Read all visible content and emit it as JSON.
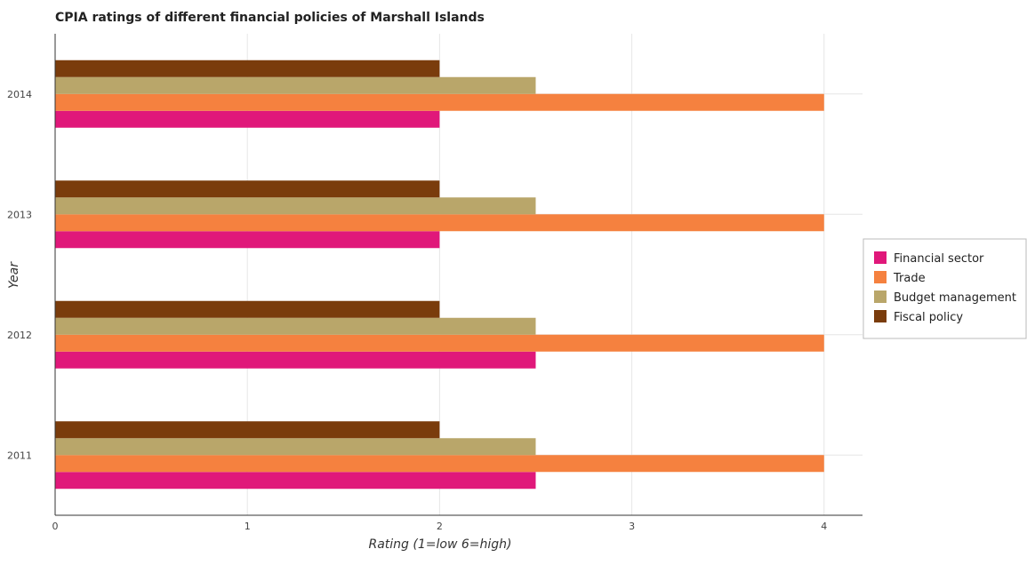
{
  "chart_data": {
    "type": "bar",
    "orientation": "horizontal",
    "title": "CPIA ratings of different financial policies of Marshall Islands",
    "xlabel": "Rating (1=low 6=high)",
    "ylabel": "Year",
    "categories": [
      "2011",
      "2012",
      "2013",
      "2014"
    ],
    "xlim": [
      0,
      4.2
    ],
    "xticks": [
      "0",
      "1",
      "2",
      "3",
      "4"
    ],
    "grid": true,
    "legend_position": "right",
    "series": [
      {
        "name": "Financial sector",
        "color": "#e0187a",
        "values": [
          2.5,
          2.5,
          2.0,
          2.0
        ]
      },
      {
        "name": "Trade",
        "color": "#f5813f",
        "values": [
          4.0,
          4.0,
          4.0,
          4.0
        ]
      },
      {
        "name": "Budget management",
        "color": "#b9a66a",
        "values": [
          2.5,
          2.5,
          2.5,
          2.5
        ]
      },
      {
        "name": "Fiscal policy",
        "color": "#7a3c0c",
        "values": [
          2.0,
          2.0,
          2.0,
          2.0
        ]
      }
    ]
  }
}
